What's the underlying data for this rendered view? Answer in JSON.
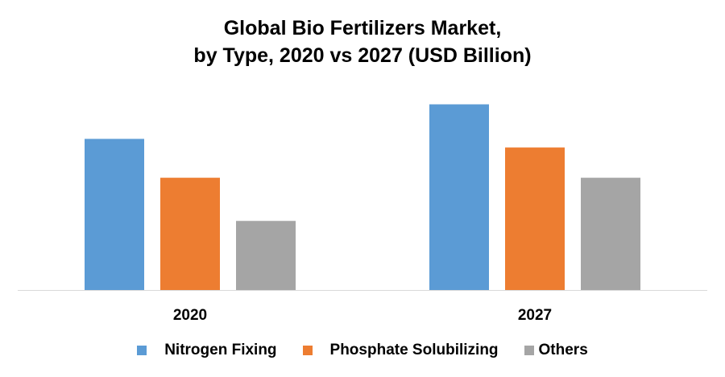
{
  "chart_data": {
    "type": "bar",
    "title_line1": "Global Bio Fertilizers Market,",
    "title_line2": "by Type, 2020 vs 2027 (USD Billion)",
    "categories": [
      "2020",
      "2027"
    ],
    "series": [
      {
        "name": "Nitrogen Fixing",
        "color": "#5B9BD5",
        "values": [
          3.5,
          4.3
        ]
      },
      {
        "name": "Phosphate Solubilizing",
        "color": "#ED7D31",
        "values": [
          2.6,
          3.3
        ]
      },
      {
        "name": "Others",
        "color": "#A5A5A5",
        "values": [
          1.6,
          2.6
        ]
      }
    ],
    "ylim": [
      0,
      5
    ],
    "grid": false,
    "legend_position": "bottom"
  }
}
